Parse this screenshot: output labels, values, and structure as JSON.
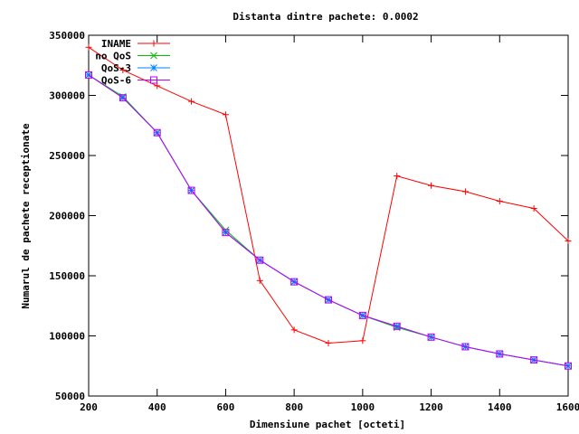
{
  "chart_data": {
    "type": "line",
    "title": "Distanta dintre pachete: 0.0002",
    "xlabel": "Dimensiune pachet [octeti]",
    "ylabel": "Numarul de pachete receptionate",
    "xlim": [
      200,
      1600
    ],
    "ylim": [
      50000,
      350000
    ],
    "xticks": [
      200,
      400,
      600,
      800,
      1000,
      1200,
      1400,
      1600
    ],
    "yticks": [
      50000,
      100000,
      150000,
      200000,
      250000,
      300000,
      350000
    ],
    "grid": false,
    "legend_position": "top-left",
    "x": [
      200,
      300,
      400,
      500,
      600,
      700,
      800,
      900,
      1000,
      1100,
      1200,
      1300,
      1400,
      1500,
      1600
    ],
    "series": [
      {
        "name": "INAME",
        "color": "#ff0000",
        "marker": "plus",
        "values": [
          340000,
          321000,
          308000,
          295000,
          284000,
          146000,
          105000,
          94000,
          96000,
          233000,
          225000,
          220000,
          212000,
          206000,
          179000
        ]
      },
      {
        "name": "no QoS",
        "color": "#00c000",
        "marker": "cross",
        "values": [
          317000,
          299000,
          269000,
          221000,
          188000,
          163000,
          145000,
          130000,
          117000,
          107000,
          99000,
          91000,
          85000,
          80000,
          75000
        ]
      },
      {
        "name": "QoS-3",
        "color": "#0080ff",
        "marker": "star",
        "values": [
          317000,
          298000,
          269000,
          221000,
          186000,
          163000,
          145000,
          130000,
          117000,
          108000,
          99000,
          91000,
          85000,
          80000,
          75000
        ]
      },
      {
        "name": "QoS-6",
        "color": "#c000ff",
        "marker": "box",
        "values": [
          317000,
          298000,
          269000,
          221000,
          186000,
          163000,
          145000,
          130000,
          117000,
          108000,
          99000,
          91000,
          85000,
          80000,
          75000
        ]
      }
    ]
  }
}
